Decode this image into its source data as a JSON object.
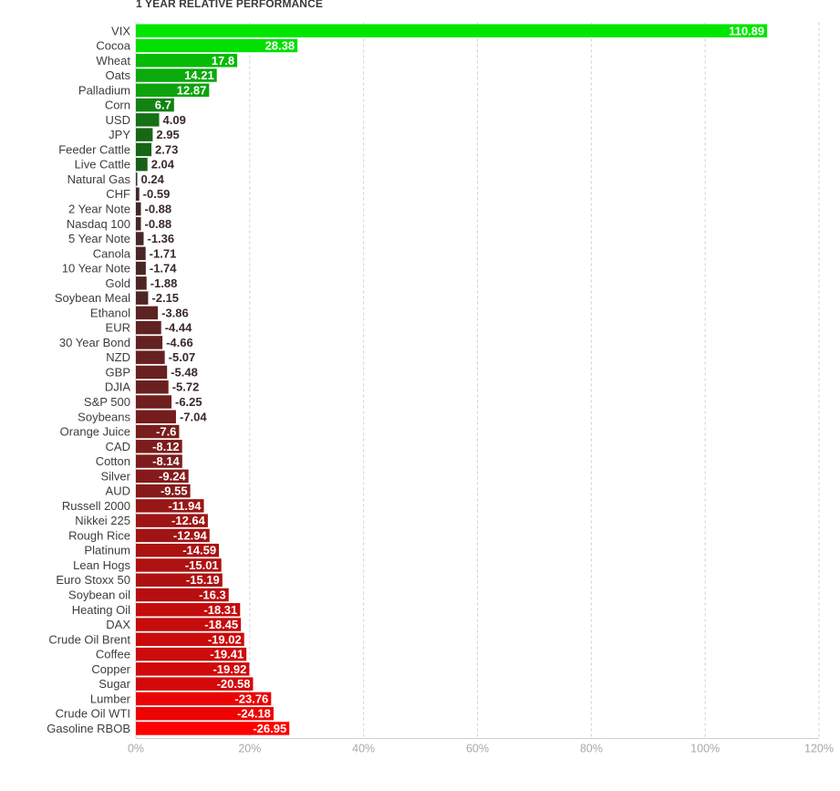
{
  "chart_data": {
    "type": "bar",
    "orientation": "horizontal",
    "title": "1 YEAR RELATIVE PERFORMANCE",
    "xlim": [
      0,
      120
    ],
    "x_ticks": [
      "0%",
      "20%",
      "40%",
      "60%",
      "80%",
      "100%",
      "120%"
    ],
    "grid": true,
    "colors": {
      "positive_high": "#00e600",
      "positive_low": "#1f3d1f",
      "neutral": "#2f2f2f",
      "negative_low": "#3a2a2a",
      "negative_high": "#ff0000"
    },
    "categories": [
      "VIX",
      "Cocoa",
      "Wheat",
      "Oats",
      "Palladium",
      "Corn",
      "USD",
      "JPY",
      "Feeder Cattle",
      "Live Cattle",
      "Natural Gas",
      "CHF",
      "2 Year Note",
      "Nasdaq 100",
      "5 Year Note",
      "Canola",
      "10 Year Note",
      "Gold",
      "Soybean Meal",
      "Ethanol",
      "EUR",
      "30 Year Bond",
      "NZD",
      "GBP",
      "DJIA",
      "S&P 500",
      "Soybeans",
      "Orange Juice",
      "CAD",
      "Cotton",
      "Silver",
      "AUD",
      "Russell 2000",
      "Nikkei 225",
      "Rough Rice",
      "Platinum",
      "Lean Hogs",
      "Euro Stoxx 50",
      "Soybean oil",
      "Heating Oil",
      "DAX",
      "Crude Oil Brent",
      "Coffee",
      "Copper",
      "Sugar",
      "Lumber",
      "Crude Oil WTI",
      "Gasoline RBOB"
    ],
    "values": [
      110.89,
      28.38,
      17.8,
      14.21,
      12.87,
      6.7,
      4.09,
      2.95,
      2.73,
      2.04,
      0.24,
      -0.59,
      -0.88,
      -0.88,
      -1.36,
      -1.71,
      -1.74,
      -1.88,
      -2.15,
      -3.86,
      -4.44,
      -4.66,
      -5.07,
      -5.48,
      -5.72,
      -6.25,
      -7.04,
      -7.6,
      -8.12,
      -8.14,
      -9.24,
      -9.55,
      -11.94,
      -12.64,
      -12.94,
      -14.59,
      -15.01,
      -15.19,
      -16.3,
      -18.31,
      -18.45,
      -19.02,
      -19.41,
      -19.92,
      -20.58,
      -23.76,
      -24.18,
      -26.95
    ],
    "value_labels": [
      "110.89",
      "28.38",
      "17.8",
      "14.21",
      "12.87",
      "6.7",
      "4.09",
      "2.95",
      "2.73",
      "2.04",
      "0.24",
      "-0.59",
      "-0.88",
      "-0.88",
      "-1.36",
      "-1.71",
      "-1.74",
      "-1.88",
      "-2.15",
      "-3.86",
      "-4.44",
      "-4.66",
      "-5.07",
      "-5.48",
      "-5.72",
      "-6.25",
      "-7.04",
      "-7.6",
      "-8.12",
      "-8.14",
      "-9.24",
      "-9.55",
      "-11.94",
      "-12.64",
      "-12.94",
      "-14.59",
      "-15.01",
      "-15.19",
      "-16.3",
      "-18.31",
      "-18.45",
      "-19.02",
      "-19.41",
      "-19.92",
      "-20.58",
      "-23.76",
      "-24.18",
      "-26.95"
    ],
    "bar_length": "absolute value"
  }
}
